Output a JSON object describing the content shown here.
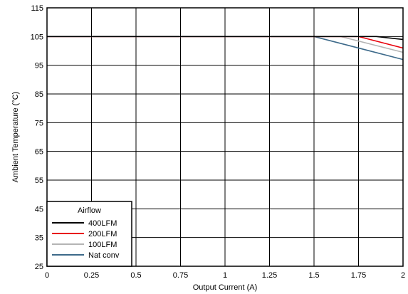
{
  "chart_data": {
    "type": "line",
    "title": "",
    "xlabel": "Output Current (A)",
    "ylabel": "Ambient Temperature (°C)",
    "xlim": [
      0,
      2
    ],
    "ylim": [
      25,
      115
    ],
    "xticks": [
      0,
      0.25,
      0.5,
      0.75,
      1,
      1.25,
      1.5,
      1.75,
      2
    ],
    "xtick_labels": [
      "0",
      "0.25",
      "0.5",
      "0.75",
      "1",
      "1.25",
      "1.5",
      "1.75",
      "2"
    ],
    "yticks": [
      25,
      35,
      45,
      55,
      65,
      75,
      85,
      95,
      105,
      115
    ],
    "ytick_labels": [
      "25",
      "35",
      "45",
      "55",
      "65",
      "75",
      "85",
      "95",
      "105",
      "115"
    ],
    "grid": true,
    "legend": {
      "title": "Airflow",
      "placement": "bottom-left"
    },
    "series": [
      {
        "name": "400LFM",
        "color": "#000000",
        "x": [
          0,
          1.5,
          1.85,
          2
        ],
        "y": [
          105,
          105,
          105,
          104
        ]
      },
      {
        "name": "200LFM",
        "color": "#e8000b",
        "x": [
          0,
          1.5,
          1.75,
          2
        ],
        "y": [
          105,
          105,
          105,
          101
        ]
      },
      {
        "name": "100LFM",
        "color": "#b4b4b4",
        "x": [
          0,
          1.5,
          1.65,
          2
        ],
        "y": [
          105,
          105,
          105,
          99.5
        ]
      },
      {
        "name": "Nat conv",
        "color": "#3d6a8a",
        "x": [
          0,
          1.5,
          2
        ],
        "y": [
          105,
          105,
          97
        ]
      }
    ]
  }
}
